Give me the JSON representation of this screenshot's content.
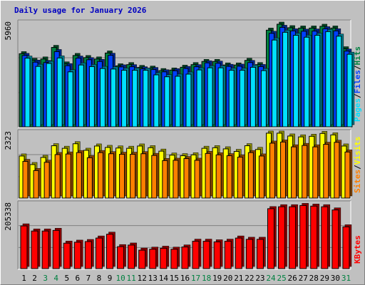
{
  "title": "Daily usage for January 2026",
  "colors": {
    "hits": "#008040",
    "files": "#0040ff",
    "pages": "#00e0ff",
    "visits": "#ffff00",
    "sites": "#ff8000",
    "kbytes": "#ff0000",
    "weekend_label": "#008040",
    "weekday_label": "#000000",
    "title": "#0000c0",
    "plot_bg": "#c0c0c0"
  },
  "chart_data": [
    {
      "type": "bar",
      "name": "hits-files-pages",
      "max_label": "5960",
      "ylim": [
        0,
        5960
      ],
      "legend": [
        "Pages",
        "Files",
        "Hits"
      ],
      "legend_placement": "right",
      "grid": true,
      "categories": [
        "1",
        "2",
        "3",
        "4",
        "5",
        "6",
        "7",
        "8",
        "9",
        "10",
        "11",
        "12",
        "13",
        "14",
        "15",
        "16",
        "17",
        "18",
        "19",
        "20",
        "21",
        "22",
        "23",
        "24",
        "25",
        "26",
        "27",
        "28",
        "29",
        "30",
        "31"
      ],
      "series": [
        {
          "name": "Hits",
          "values": [
            4200,
            3820,
            3900,
            4560,
            3620,
            4100,
            3980,
            3900,
            4240,
            3510,
            3580,
            3420,
            3380,
            3240,
            3270,
            3430,
            3580,
            3760,
            3760,
            3560,
            3560,
            3820,
            3580,
            5540,
            5880,
            5680,
            5660,
            5660,
            5760,
            5660,
            4480
          ]
        },
        {
          "name": "Files",
          "values": [
            4100,
            3720,
            3700,
            4320,
            3520,
            3950,
            3860,
            3760,
            4110,
            3450,
            3460,
            3340,
            3300,
            3170,
            3230,
            3360,
            3460,
            3680,
            3660,
            3480,
            3490,
            3700,
            3470,
            5360,
            5700,
            5500,
            5480,
            5490,
            5620,
            5500,
            4350
          ]
        },
        {
          "name": "Pages",
          "values": [
            3950,
            3480,
            3650,
            3960,
            3170,
            3560,
            3470,
            3360,
            3330,
            3260,
            3260,
            3260,
            3000,
            2890,
            2920,
            3040,
            3280,
            3400,
            3400,
            3260,
            3260,
            3430,
            3240,
            4980,
            5420,
            5250,
            5140,
            5250,
            5460,
            5200,
            4170
          ]
        }
      ]
    },
    {
      "type": "bar",
      "name": "visits-sites",
      "max_label": "2323",
      "ylim": [
        0,
        2323
      ],
      "legend": [
        "Sites",
        "Visits"
      ],
      "legend_placement": "right",
      "grid": true,
      "categories": [
        "1",
        "2",
        "3",
        "4",
        "5",
        "6",
        "7",
        "8",
        "9",
        "10",
        "11",
        "12",
        "13",
        "14",
        "15",
        "16",
        "17",
        "18",
        "19",
        "20",
        "21",
        "22",
        "23",
        "24",
        "25",
        "26",
        "27",
        "28",
        "29",
        "30",
        "31"
      ],
      "series": [
        {
          "name": "Visits",
          "values": [
            1500,
            1200,
            1450,
            1860,
            1770,
            1930,
            1700,
            1850,
            1800,
            1780,
            1770,
            1850,
            1790,
            1670,
            1530,
            1510,
            1540,
            1770,
            1790,
            1750,
            1660,
            1860,
            1730,
            2300,
            2300,
            2200,
            2170,
            2190,
            2290,
            2240,
            1850
          ]
        },
        {
          "name": "Sites",
          "values": [
            1310,
            990,
            1280,
            1550,
            1570,
            1620,
            1440,
            1620,
            1580,
            1560,
            1560,
            1580,
            1520,
            1340,
            1350,
            1410,
            1350,
            1590,
            1540,
            1510,
            1460,
            1620,
            1500,
            1950,
            1990,
            1820,
            1870,
            1820,
            1910,
            1980,
            1640
          ]
        }
      ]
    },
    {
      "type": "bar",
      "name": "kbytes",
      "max_label": "205338",
      "ylim": [
        0,
        205338
      ],
      "legend": [
        "KBytes"
      ],
      "legend_placement": "right",
      "grid": true,
      "categories": [
        "1",
        "2",
        "3",
        "4",
        "5",
        "6",
        "7",
        "8",
        "9",
        "10",
        "11",
        "12",
        "13",
        "14",
        "15",
        "16",
        "17",
        "18",
        "19",
        "20",
        "21",
        "22",
        "23",
        "24",
        "25",
        "26",
        "27",
        "28",
        "29",
        "30",
        "31"
      ],
      "series": [
        {
          "name": "KBytes",
          "values": [
            136000,
            120000,
            120000,
            122000,
            82000,
            85000,
            87000,
            98000,
            110000,
            71000,
            76000,
            60000,
            63000,
            66000,
            63000,
            70000,
            88000,
            88000,
            86000,
            88000,
            98000,
            94000,
            94000,
            190000,
            196000,
            196000,
            200000,
            198000,
            196000,
            186000,
            133000
          ]
        }
      ]
    }
  ],
  "x_labels": [
    {
      "text": "1",
      "weekend": false
    },
    {
      "text": "2",
      "weekend": false
    },
    {
      "text": "3",
      "weekend": true
    },
    {
      "text": "4",
      "weekend": true
    },
    {
      "text": "5",
      "weekend": false
    },
    {
      "text": "6",
      "weekend": false
    },
    {
      "text": "7",
      "weekend": false
    },
    {
      "text": "8",
      "weekend": false
    },
    {
      "text": "9",
      "weekend": false
    },
    {
      "text": "10",
      "weekend": true
    },
    {
      "text": "11",
      "weekend": true
    },
    {
      "text": "12",
      "weekend": false
    },
    {
      "text": "13",
      "weekend": false
    },
    {
      "text": "14",
      "weekend": false
    },
    {
      "text": "15",
      "weekend": false
    },
    {
      "text": "16",
      "weekend": false
    },
    {
      "text": "17",
      "weekend": true
    },
    {
      "text": "18",
      "weekend": true
    },
    {
      "text": "19",
      "weekend": false
    },
    {
      "text": "20",
      "weekend": false
    },
    {
      "text": "21",
      "weekend": false
    },
    {
      "text": "22",
      "weekend": false
    },
    {
      "text": "23",
      "weekend": false
    },
    {
      "text": "24",
      "weekend": true
    },
    {
      "text": "25",
      "weekend": true
    },
    {
      "text": "26",
      "weekend": false
    },
    {
      "text": "27",
      "weekend": false
    },
    {
      "text": "28",
      "weekend": false
    },
    {
      "text": "29",
      "weekend": false
    },
    {
      "text": "30",
      "weekend": false
    },
    {
      "text": "31",
      "weekend": true
    }
  ]
}
